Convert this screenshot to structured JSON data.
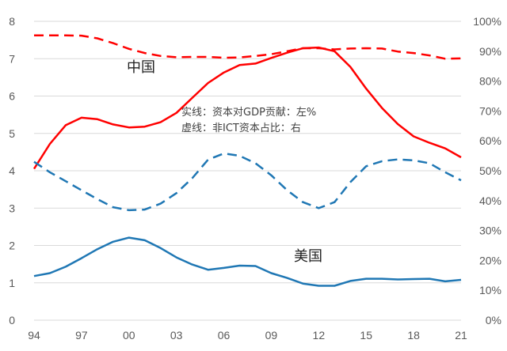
{
  "chart_data": {
    "type": "line",
    "x": [
      "94",
      "95",
      "96",
      "97",
      "98",
      "99",
      "00",
      "01",
      "02",
      "03",
      "04",
      "05",
      "06",
      "07",
      "08",
      "09",
      "10",
      "11",
      "12",
      "13",
      "14",
      "15",
      "16",
      "17",
      "18",
      "19",
      "20",
      "21"
    ],
    "x_tick_labels": [
      "94",
      "97",
      "00",
      "03",
      "06",
      "09",
      "12",
      "15",
      "18",
      "21"
    ],
    "x_tick_positions": [
      "94",
      "97",
      "00",
      "03",
      "06",
      "09",
      "12",
      "15",
      "18",
      "21"
    ],
    "y_left": {
      "ylim": [
        0,
        8
      ],
      "ticks": [
        "0",
        "1",
        "2",
        "3",
        "4",
        "5",
        "6",
        "7",
        "8"
      ]
    },
    "y_right": {
      "ylim": [
        0,
        100
      ],
      "ticks": [
        "0%",
        "10%",
        "20%",
        "30%",
        "40%",
        "50%",
        "60%",
        "70%",
        "80%",
        "90%",
        "100%"
      ]
    },
    "grid": true,
    "annotations": [
      {
        "text": "实线：资本对GDP贡献：左%"
      },
      {
        "text": "虚线：非ICT资本占比：右"
      }
    ],
    "series_labels": [
      {
        "text": "中国",
        "color": "#ff0000"
      },
      {
        "text": "美国",
        "color": "#1f77b4"
      }
    ],
    "series": [
      {
        "group": "中国",
        "axis": "left",
        "style": "solid",
        "color": "#ff0000",
        "values": [
          4.05,
          4.72,
          5.22,
          5.42,
          5.38,
          5.24,
          5.16,
          5.18,
          5.3,
          5.55,
          5.95,
          6.35,
          6.63,
          6.83,
          6.87,
          7.02,
          7.16,
          7.28,
          7.3,
          7.2,
          6.78,
          6.2,
          5.68,
          5.25,
          4.92,
          4.75,
          4.6,
          4.36
        ]
      },
      {
        "group": "中国",
        "axis": "right",
        "style": "dashed",
        "color": "#ff0000",
        "values": [
          95.3,
          95.3,
          95.3,
          95.2,
          94.3,
          92.7,
          90.8,
          89.4,
          88.4,
          88.0,
          88.1,
          88.1,
          87.8,
          87.9,
          88.4,
          89.0,
          90.0,
          91.0,
          91.0,
          90.6,
          90.9,
          91.0,
          90.9,
          89.9,
          89.4,
          88.6,
          87.5,
          87.6
        ]
      },
      {
        "group": "美国",
        "axis": "left",
        "style": "solid",
        "color": "#1f77b4",
        "values": [
          1.18,
          1.26,
          1.43,
          1.66,
          1.9,
          2.1,
          2.21,
          2.14,
          1.93,
          1.68,
          1.49,
          1.35,
          1.4,
          1.46,
          1.45,
          1.26,
          1.13,
          0.98,
          0.92,
          0.92,
          1.05,
          1.11,
          1.11,
          1.09,
          1.1,
          1.11,
          1.04,
          1.08
        ]
      },
      {
        "group": "美国",
        "axis": "right",
        "style": "dashed",
        "color": "#1f77b4",
        "values": [
          53.0,
          49.5,
          46.5,
          43.5,
          40.5,
          37.8,
          36.8,
          37.0,
          39.0,
          42.5,
          47.5,
          53.7,
          55.8,
          55.0,
          52.5,
          48.5,
          43.5,
          39.5,
          37.5,
          39.5,
          46.2,
          51.5,
          53.2,
          53.8,
          53.5,
          52.5,
          49.5,
          46.8
        ]
      }
    ]
  }
}
